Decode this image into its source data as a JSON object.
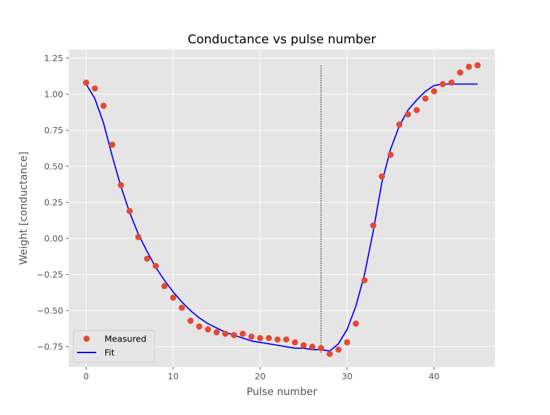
{
  "chart_data": {
    "type": "scatter",
    "title": "Conductance vs pulse number",
    "xlabel": "Pulse number",
    "ylabel": "Weight [conductance]",
    "xlim": [
      -2,
      47
    ],
    "ylim": [
      -0.89,
      1.31
    ],
    "x_ticks": [
      0,
      10,
      20,
      30,
      40
    ],
    "y_ticks": [
      -0.75,
      -0.5,
      -0.25,
      0.0,
      0.25,
      0.5,
      0.75,
      1.0,
      1.25
    ],
    "x_tick_labels": [
      "0",
      "10",
      "20",
      "30",
      "40"
    ],
    "y_tick_labels": [
      "−0.75",
      "−0.50",
      "−0.25",
      "0.00",
      "0.25",
      "0.50",
      "0.75",
      "1.00",
      "1.25"
    ],
    "grid": true,
    "legend_position": "lower-left",
    "vline": {
      "x": 27,
      "ymin": -0.8,
      "ymax": 1.2,
      "color": "#000000"
    },
    "series": [
      {
        "name": "Measured",
        "kind": "scatter",
        "color": "#E24A33",
        "x": [
          0,
          1,
          2,
          3,
          4,
          5,
          6,
          7,
          8,
          9,
          10,
          11,
          12,
          13,
          14,
          15,
          16,
          17,
          18,
          19,
          20,
          21,
          22,
          23,
          24,
          25,
          26,
          27,
          28,
          29,
          30,
          31,
          32,
          33,
          34,
          35,
          36,
          37,
          38,
          39,
          40,
          41,
          42,
          43,
          44,
          45
        ],
        "y": [
          1.08,
          1.04,
          0.92,
          0.65,
          0.37,
          0.19,
          0.01,
          -0.14,
          -0.19,
          -0.33,
          -0.41,
          -0.48,
          -0.57,
          -0.61,
          -0.63,
          -0.65,
          -0.66,
          -0.67,
          -0.66,
          -0.68,
          -0.69,
          -0.69,
          -0.7,
          -0.7,
          -0.72,
          -0.74,
          -0.75,
          -0.76,
          -0.8,
          -0.77,
          -0.72,
          -0.59,
          -0.29,
          0.09,
          0.43,
          0.58,
          0.79,
          0.86,
          0.89,
          0.97,
          1.02,
          1.07,
          1.08,
          1.15,
          1.19,
          1.2
        ]
      },
      {
        "name": "Fit",
        "kind": "line",
        "color": "#0000FF",
        "x": [
          0,
          1,
          2,
          3,
          4,
          5,
          6,
          7,
          8,
          9,
          10,
          11,
          12,
          13,
          14,
          15,
          16,
          17,
          18,
          19,
          20,
          21,
          22,
          23,
          24,
          25,
          26,
          27,
          28,
          29,
          30,
          31,
          32,
          33,
          34,
          35,
          36,
          37,
          38,
          39,
          40,
          41,
          42,
          43,
          44,
          45
        ],
        "y": [
          1.07,
          0.97,
          0.8,
          0.57,
          0.36,
          0.18,
          0.03,
          -0.09,
          -0.2,
          -0.29,
          -0.37,
          -0.44,
          -0.5,
          -0.55,
          -0.59,
          -0.62,
          -0.65,
          -0.67,
          -0.69,
          -0.71,
          -0.72,
          -0.73,
          -0.74,
          -0.75,
          -0.76,
          -0.76,
          -0.77,
          -0.77,
          -0.78,
          -0.73,
          -0.63,
          -0.47,
          -0.25,
          0.05,
          0.39,
          0.62,
          0.78,
          0.89,
          0.96,
          1.02,
          1.06,
          1.07,
          1.07,
          1.07,
          1.07,
          1.07
        ]
      }
    ]
  }
}
